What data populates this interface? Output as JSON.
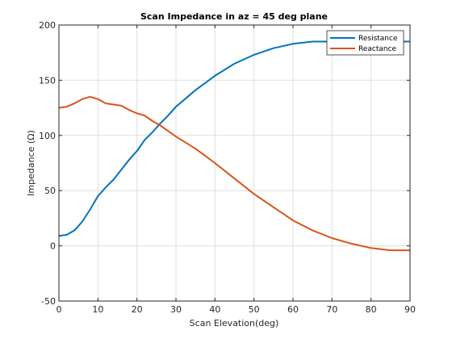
{
  "chart_data": {
    "type": "line",
    "title": "Scan Impedance in az = 45 deg plane",
    "xlabel": "Scan Elevation(deg)",
    "ylabel": "Impedance (Ω)",
    "xlim": [
      0,
      90
    ],
    "ylim": [
      -50,
      200
    ],
    "xticks": [
      "0",
      "10",
      "20",
      "30",
      "40",
      "50",
      "60",
      "70",
      "80",
      "90"
    ],
    "yticks": [
      "-50",
      "0",
      "50",
      "100",
      "150",
      "200"
    ],
    "grid": true,
    "legend_position": "top-right",
    "series": [
      {
        "name": "Resistance",
        "color": "#0072BD",
        "x": [
          0,
          2,
          4,
          6,
          8,
          10,
          12,
          14,
          16,
          18,
          20,
          22,
          24,
          26,
          28,
          30,
          35,
          40,
          45,
          50,
          55,
          60,
          65,
          70,
          75,
          80,
          85,
          90
        ],
        "y": [
          9,
          10,
          14,
          22,
          33,
          45,
          53,
          60,
          69,
          78,
          86,
          96,
          103,
          111,
          118,
          126,
          141,
          154,
          165,
          173,
          179,
          183,
          185,
          185,
          185,
          185,
          185,
          185
        ]
      },
      {
        "name": "Reactance",
        "color": "#D95319",
        "x": [
          0,
          2,
          4,
          6,
          8,
          10,
          12,
          14,
          16,
          18,
          20,
          22,
          24,
          26,
          28,
          30,
          35,
          40,
          45,
          50,
          55,
          60,
          65,
          70,
          75,
          80,
          85,
          90
        ],
        "y": [
          125,
          126,
          129,
          133,
          135,
          133,
          129,
          128,
          127,
          123,
          120,
          118,
          113,
          109,
          104,
          99,
          88,
          75,
          61,
          47,
          35,
          23,
          14,
          7,
          2,
          -2,
          -4,
          -4
        ]
      }
    ]
  }
}
